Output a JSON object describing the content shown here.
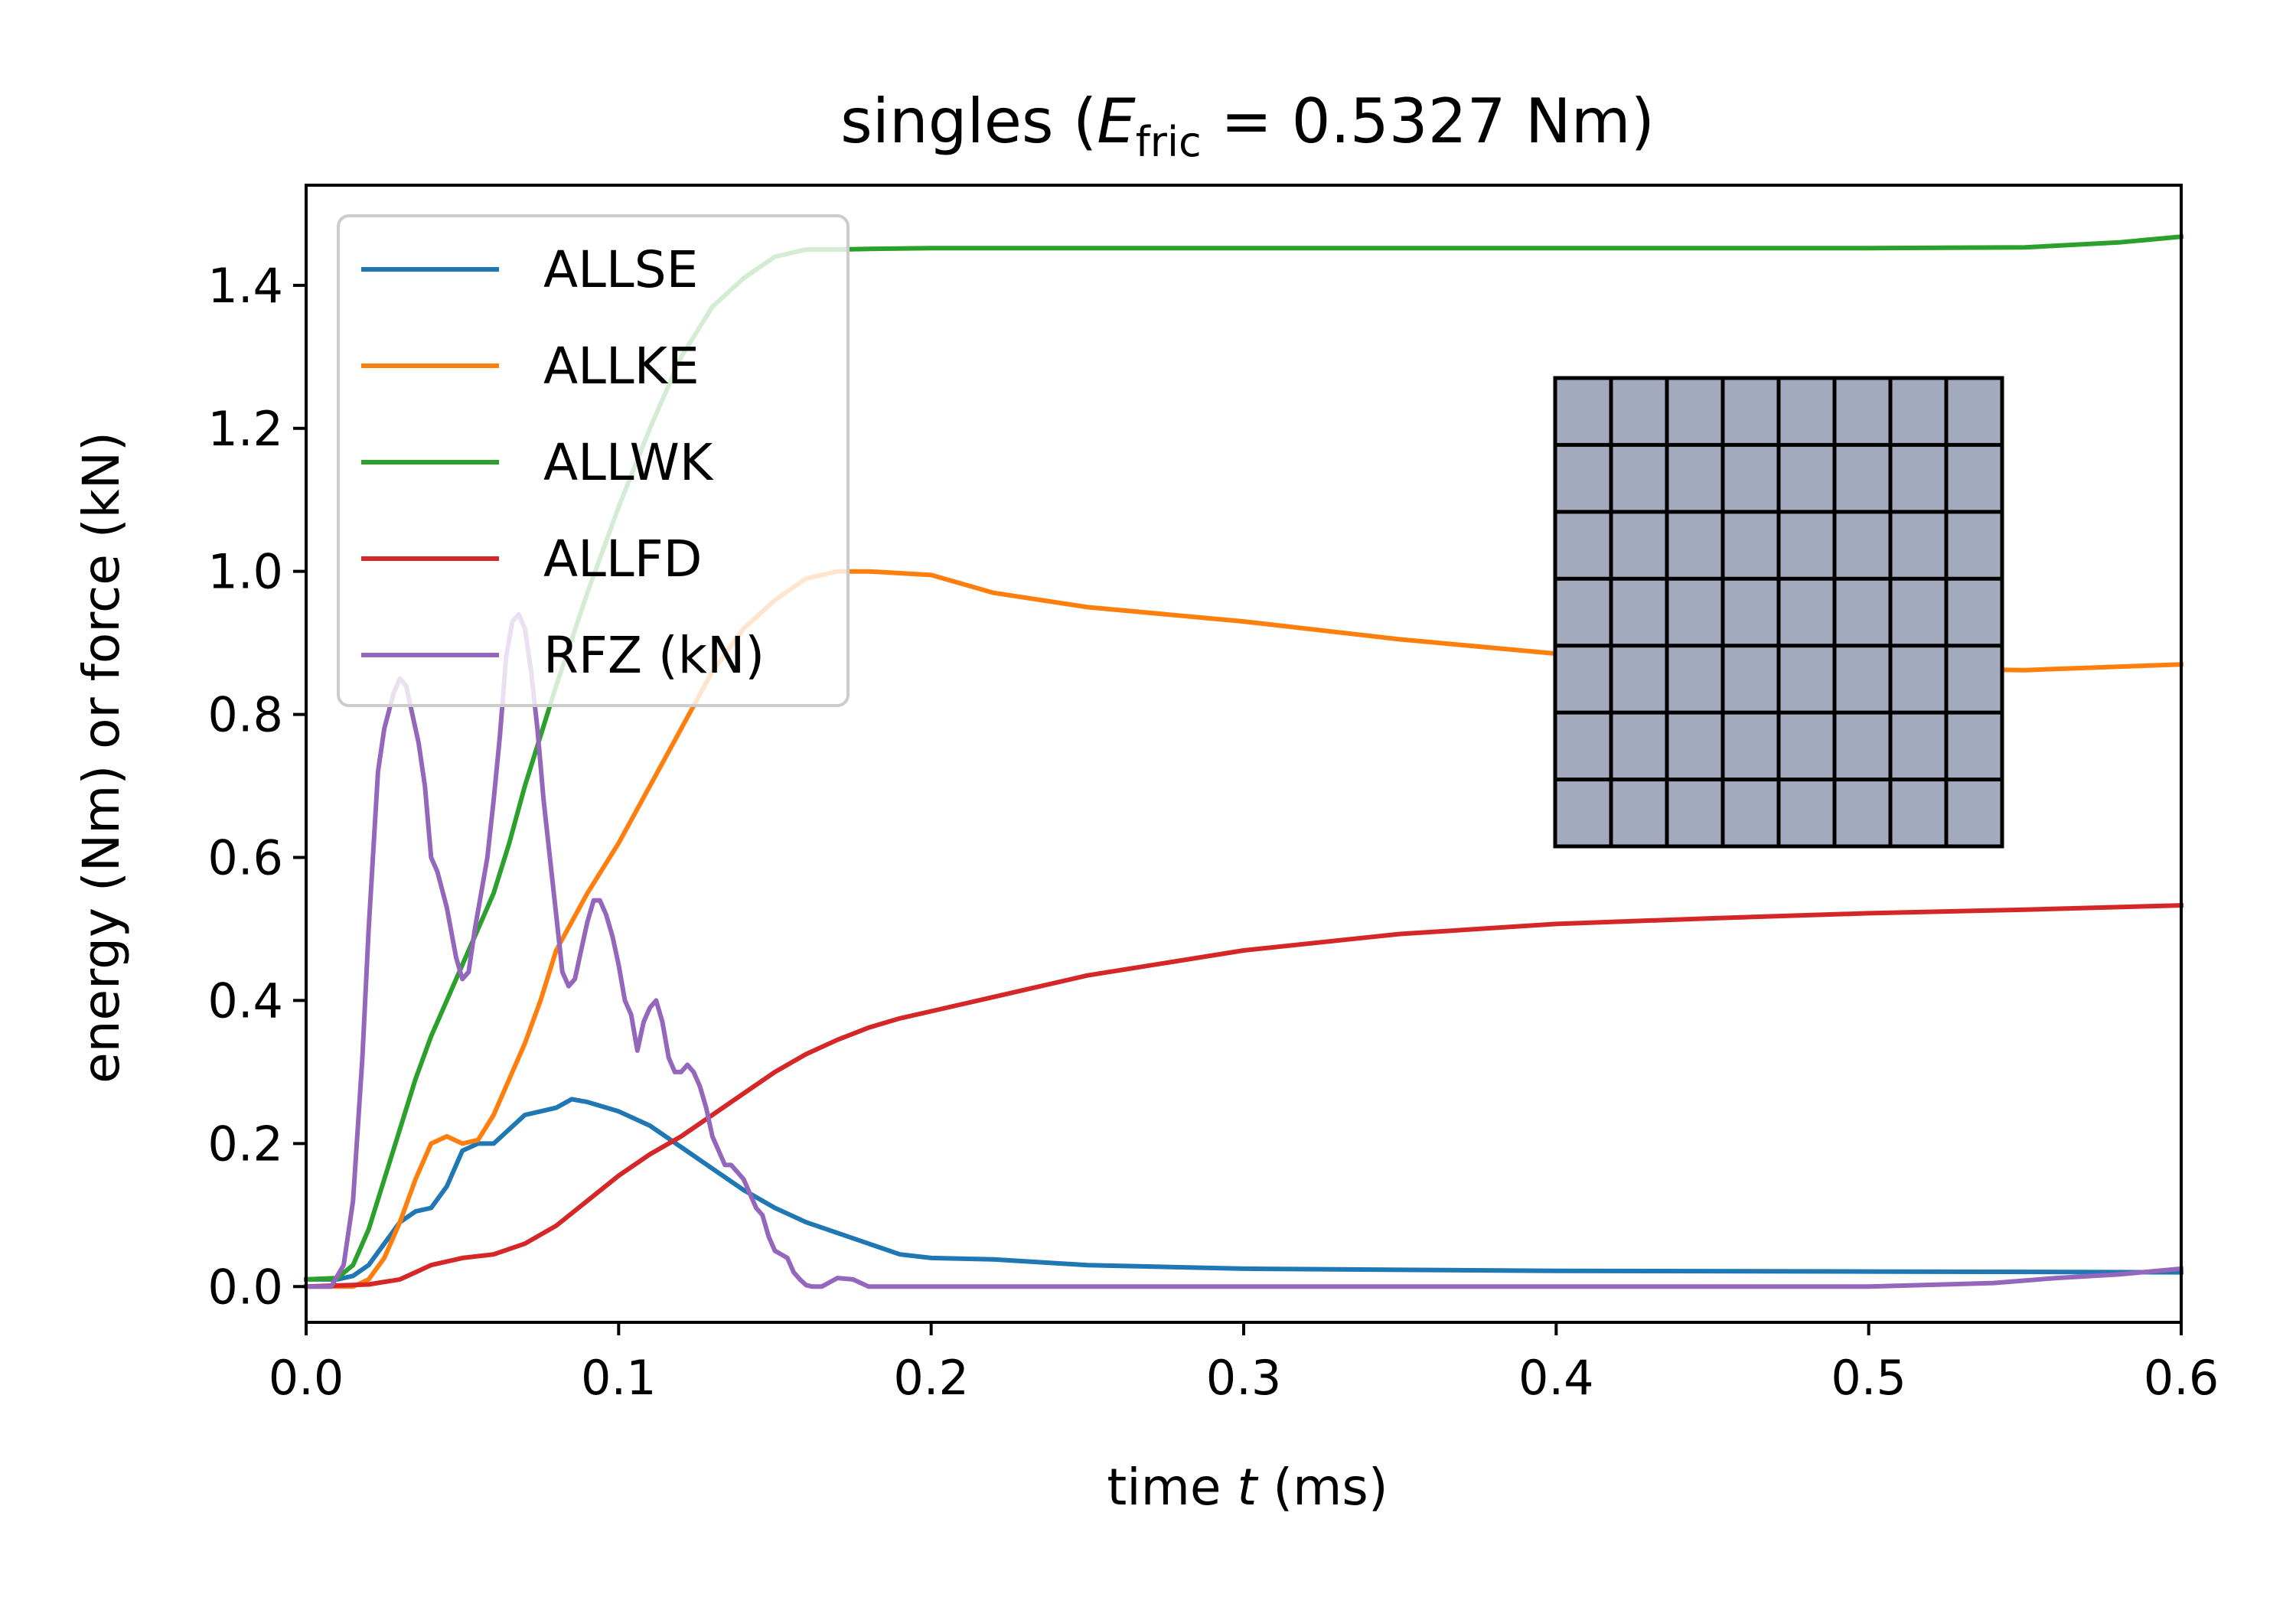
{
  "chart_data": {
    "type": "line",
    "title": {
      "prefix": "singles (",
      "symbol": "E",
      "subscript": "fric",
      "suffix": " = 0.5327 Nm)"
    },
    "xlabel": {
      "prefix": "time ",
      "italic": "t",
      "suffix": " (ms)"
    },
    "ylabel": "energy (Nm) or force (kN)",
    "xlim": [
      0.0,
      0.6
    ],
    "ylim": [
      -0.05,
      1.54
    ],
    "xticks": [
      0.0,
      0.1,
      0.2,
      0.3,
      0.4,
      0.5,
      0.6
    ],
    "xtick_labels": [
      "0.0",
      "0.1",
      "0.2",
      "0.3",
      "0.4",
      "0.5",
      "0.6"
    ],
    "yticks": [
      0.0,
      0.2,
      0.4,
      0.6,
      0.8,
      1.0,
      1.2,
      1.4
    ],
    "ytick_labels": [
      "0.0",
      "0.2",
      "0.4",
      "0.6",
      "0.8",
      "1.0",
      "1.2",
      "1.4"
    ],
    "grid": false,
    "legend_position": "top-left",
    "series": [
      {
        "name": "ALLSE",
        "color": "#1f77b4",
        "x": [
          0.0,
          0.01,
          0.015,
          0.02,
          0.025,
          0.03,
          0.035,
          0.04,
          0.045,
          0.05,
          0.055,
          0.06,
          0.065,
          0.07,
          0.075,
          0.08,
          0.085,
          0.09,
          0.1,
          0.11,
          0.12,
          0.13,
          0.14,
          0.15,
          0.16,
          0.17,
          0.18,
          0.19,
          0.2,
          0.22,
          0.25,
          0.3,
          0.4,
          0.5,
          0.6
        ],
        "y": [
          0.01,
          0.01,
          0.015,
          0.03,
          0.06,
          0.09,
          0.105,
          0.11,
          0.14,
          0.19,
          0.2,
          0.2,
          0.22,
          0.24,
          0.245,
          0.25,
          0.262,
          0.258,
          0.245,
          0.225,
          0.195,
          0.165,
          0.135,
          0.11,
          0.09,
          0.075,
          0.06,
          0.045,
          0.04,
          0.038,
          0.03,
          0.025,
          0.022,
          0.021,
          0.02
        ]
      },
      {
        "name": "ALLKE",
        "color": "#ff7f0e",
        "x": [
          0.0,
          0.015,
          0.02,
          0.025,
          0.03,
          0.035,
          0.04,
          0.045,
          0.05,
          0.055,
          0.06,
          0.065,
          0.07,
          0.075,
          0.08,
          0.085,
          0.09,
          0.1,
          0.11,
          0.12,
          0.13,
          0.14,
          0.15,
          0.16,
          0.17,
          0.18,
          0.2,
          0.22,
          0.25,
          0.3,
          0.35,
          0.4,
          0.45,
          0.5,
          0.55,
          0.6
        ],
        "y": [
          0.0,
          0.0,
          0.01,
          0.04,
          0.09,
          0.15,
          0.2,
          0.21,
          0.2,
          0.205,
          0.24,
          0.29,
          0.34,
          0.4,
          0.47,
          0.51,
          0.55,
          0.62,
          0.7,
          0.78,
          0.86,
          0.92,
          0.96,
          0.99,
          1.0,
          1.0,
          0.995,
          0.97,
          0.95,
          0.93,
          0.905,
          0.885,
          0.87,
          0.865,
          0.862,
          0.87
        ]
      },
      {
        "name": "ALLWK",
        "color": "#2ca02c",
        "x": [
          0.0,
          0.01,
          0.015,
          0.02,
          0.025,
          0.03,
          0.035,
          0.04,
          0.045,
          0.05,
          0.055,
          0.06,
          0.065,
          0.07,
          0.075,
          0.08,
          0.09,
          0.1,
          0.11,
          0.12,
          0.13,
          0.14,
          0.15,
          0.16,
          0.17,
          0.18,
          0.2,
          0.3,
          0.4,
          0.5,
          0.55,
          0.58,
          0.6
        ],
        "y": [
          0.01,
          0.012,
          0.03,
          0.08,
          0.15,
          0.22,
          0.29,
          0.35,
          0.4,
          0.45,
          0.5,
          0.55,
          0.62,
          0.7,
          0.77,
          0.84,
          0.97,
          1.09,
          1.2,
          1.3,
          1.37,
          1.41,
          1.44,
          1.45,
          1.45,
          1.451,
          1.452,
          1.452,
          1.452,
          1.452,
          1.453,
          1.46,
          1.468
        ]
      },
      {
        "name": "ALLFD",
        "color": "#d62728",
        "x": [
          0.0,
          0.02,
          0.03,
          0.035,
          0.04,
          0.045,
          0.05,
          0.06,
          0.07,
          0.08,
          0.09,
          0.1,
          0.11,
          0.12,
          0.13,
          0.14,
          0.15,
          0.16,
          0.17,
          0.18,
          0.19,
          0.2,
          0.22,
          0.25,
          0.3,
          0.35,
          0.4,
          0.45,
          0.5,
          0.55,
          0.6
        ],
        "y": [
          0.0,
          0.003,
          0.01,
          0.02,
          0.03,
          0.035,
          0.04,
          0.045,
          0.06,
          0.085,
          0.12,
          0.155,
          0.185,
          0.21,
          0.24,
          0.27,
          0.3,
          0.325,
          0.345,
          0.362,
          0.375,
          0.385,
          0.405,
          0.435,
          0.47,
          0.493,
          0.507,
          0.515,
          0.522,
          0.527,
          0.533
        ]
      },
      {
        "name": "RFZ (kN)",
        "color": "#9467bd",
        "x": [
          0.0,
          0.008,
          0.012,
          0.015,
          0.018,
          0.02,
          0.023,
          0.025,
          0.028,
          0.03,
          0.032,
          0.034,
          0.036,
          0.038,
          0.04,
          0.042,
          0.045,
          0.048,
          0.05,
          0.052,
          0.054,
          0.056,
          0.058,
          0.06,
          0.062,
          0.064,
          0.066,
          0.068,
          0.07,
          0.072,
          0.074,
          0.076,
          0.078,
          0.08,
          0.082,
          0.084,
          0.086,
          0.088,
          0.09,
          0.092,
          0.094,
          0.096,
          0.098,
          0.1,
          0.102,
          0.104,
          0.106,
          0.108,
          0.11,
          0.112,
          0.114,
          0.116,
          0.118,
          0.12,
          0.122,
          0.124,
          0.126,
          0.128,
          0.13,
          0.132,
          0.134,
          0.136,
          0.138,
          0.14,
          0.142,
          0.144,
          0.146,
          0.148,
          0.15,
          0.152,
          0.154,
          0.156,
          0.158,
          0.16,
          0.162,
          0.165,
          0.17,
          0.175,
          0.18,
          0.185,
          0.19,
          0.195,
          0.2,
          0.3,
          0.4,
          0.5,
          0.54,
          0.56,
          0.58,
          0.6
        ],
        "y": [
          0.0,
          0.0,
          0.03,
          0.12,
          0.32,
          0.5,
          0.72,
          0.78,
          0.83,
          0.85,
          0.84,
          0.8,
          0.76,
          0.7,
          0.6,
          0.58,
          0.53,
          0.46,
          0.43,
          0.44,
          0.5,
          0.55,
          0.6,
          0.68,
          0.77,
          0.88,
          0.93,
          0.94,
          0.92,
          0.86,
          0.78,
          0.68,
          0.6,
          0.52,
          0.44,
          0.42,
          0.43,
          0.47,
          0.51,
          0.54,
          0.54,
          0.52,
          0.49,
          0.45,
          0.4,
          0.38,
          0.33,
          0.37,
          0.39,
          0.4,
          0.37,
          0.32,
          0.3,
          0.3,
          0.31,
          0.3,
          0.28,
          0.25,
          0.21,
          0.19,
          0.17,
          0.17,
          0.16,
          0.15,
          0.13,
          0.11,
          0.1,
          0.07,
          0.05,
          0.045,
          0.04,
          0.02,
          0.01,
          0.002,
          0.0,
          0.0,
          0.012,
          0.01,
          0.0,
          0.0,
          0.0,
          0.0,
          0.0,
          0.0,
          0.0,
          0.0,
          0.005,
          0.012,
          0.017,
          0.025
        ]
      }
    ],
    "inset": {
      "description_color": "#a3aabd",
      "edge_color": "#000000",
      "columns": 8,
      "rows": 7
    }
  }
}
